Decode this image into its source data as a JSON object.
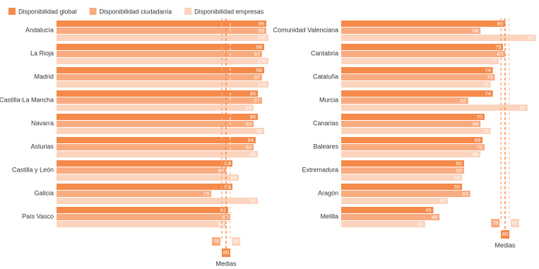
{
  "chart_data": {
    "type": "bar",
    "categories": [
      "Andalucía",
      "La Rioja",
      "Madrid",
      "Castilla-La Mancha",
      "Navarra",
      "Asturias",
      "Castilla y León",
      "Galicia",
      "País Vasco",
      "Comunidad Valenciana",
      "Cantabria",
      "Cataluña",
      "Murcia",
      "Canarias",
      "Baleares",
      "Extremadura",
      "Aragón",
      "Melilla"
    ],
    "series": [
      {
        "name": "Disponibilidad global",
        "color": "#f58a4b",
        "values": [
          99,
          98,
          98,
          95,
          95,
          94,
          83,
          83,
          81,
          80,
          79,
          74,
          74,
          70,
          69,
          60,
          59,
          45
        ]
      },
      {
        "name": "Disponibilidad ciudadanía",
        "color": "#f9ab80",
        "values": [
          99,
          97,
          97,
          97,
          93,
          93,
          80,
          73,
          82,
          68,
          80,
          75,
          62,
          68,
          70,
          60,
          63,
          48
        ]
      },
      {
        "name": "Disponibilidad empresas",
        "color": "#fcd3bd",
        "values": [
          100,
          100,
          100,
          93,
          98,
          95,
          86,
          95,
          80,
          95,
          77,
          73,
          91,
          73,
          68,
          59,
          52,
          41
        ]
      }
    ],
    "means_label": "Medias",
    "means": [
      80,
      78,
      82
    ],
    "xlim": [
      0,
      100
    ]
  }
}
